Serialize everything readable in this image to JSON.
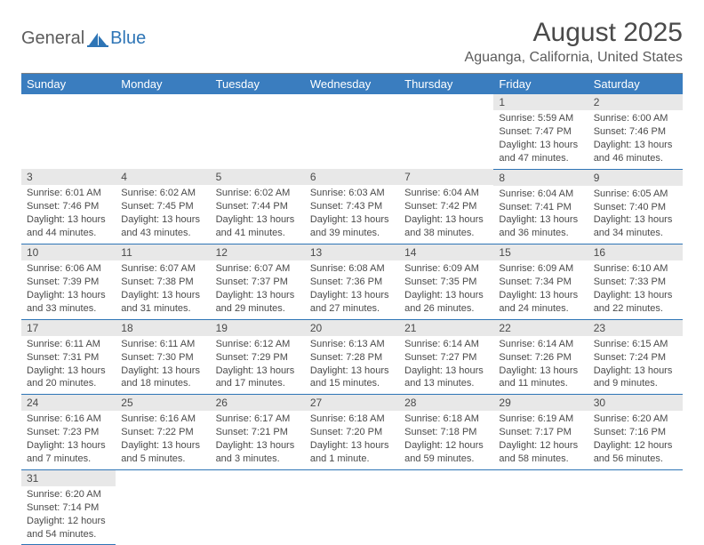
{
  "branding": {
    "text_general": "General",
    "text_blue": "Blue",
    "logo_color": "#2e75b6"
  },
  "header": {
    "month_title": "August 2025",
    "location": "Aguanga, California, United States"
  },
  "colors": {
    "header_bg": "#3a7dbf",
    "header_text": "#ffffff",
    "daynum_bg": "#e8e8e8",
    "row_divider": "#2e75b6",
    "body_text": "#4a4a4a",
    "page_bg": "#ffffff",
    "hr": "#808080"
  },
  "typography": {
    "month_title_fontsize": 30,
    "location_fontsize": 16,
    "dayheader_fontsize": 13,
    "daynum_fontsize": 12,
    "cell_fontsize": 11
  },
  "calendar": {
    "day_headers": [
      "Sunday",
      "Monday",
      "Tuesday",
      "Wednesday",
      "Thursday",
      "Friday",
      "Saturday"
    ],
    "weeks": [
      [
        null,
        null,
        null,
        null,
        null,
        {
          "day": "1",
          "sunrise": "Sunrise: 5:59 AM",
          "sunset": "Sunset: 7:47 PM",
          "daylight1": "Daylight: 13 hours",
          "daylight2": "and 47 minutes."
        },
        {
          "day": "2",
          "sunrise": "Sunrise: 6:00 AM",
          "sunset": "Sunset: 7:46 PM",
          "daylight1": "Daylight: 13 hours",
          "daylight2": "and 46 minutes."
        }
      ],
      [
        {
          "day": "3",
          "sunrise": "Sunrise: 6:01 AM",
          "sunset": "Sunset: 7:46 PM",
          "daylight1": "Daylight: 13 hours",
          "daylight2": "and 44 minutes."
        },
        {
          "day": "4",
          "sunrise": "Sunrise: 6:02 AM",
          "sunset": "Sunset: 7:45 PM",
          "daylight1": "Daylight: 13 hours",
          "daylight2": "and 43 minutes."
        },
        {
          "day": "5",
          "sunrise": "Sunrise: 6:02 AM",
          "sunset": "Sunset: 7:44 PM",
          "daylight1": "Daylight: 13 hours",
          "daylight2": "and 41 minutes."
        },
        {
          "day": "6",
          "sunrise": "Sunrise: 6:03 AM",
          "sunset": "Sunset: 7:43 PM",
          "daylight1": "Daylight: 13 hours",
          "daylight2": "and 39 minutes."
        },
        {
          "day": "7",
          "sunrise": "Sunrise: 6:04 AM",
          "sunset": "Sunset: 7:42 PM",
          "daylight1": "Daylight: 13 hours",
          "daylight2": "and 38 minutes."
        },
        {
          "day": "8",
          "sunrise": "Sunrise: 6:04 AM",
          "sunset": "Sunset: 7:41 PM",
          "daylight1": "Daylight: 13 hours",
          "daylight2": "and 36 minutes."
        },
        {
          "day": "9",
          "sunrise": "Sunrise: 6:05 AM",
          "sunset": "Sunset: 7:40 PM",
          "daylight1": "Daylight: 13 hours",
          "daylight2": "and 34 minutes."
        }
      ],
      [
        {
          "day": "10",
          "sunrise": "Sunrise: 6:06 AM",
          "sunset": "Sunset: 7:39 PM",
          "daylight1": "Daylight: 13 hours",
          "daylight2": "and 33 minutes."
        },
        {
          "day": "11",
          "sunrise": "Sunrise: 6:07 AM",
          "sunset": "Sunset: 7:38 PM",
          "daylight1": "Daylight: 13 hours",
          "daylight2": "and 31 minutes."
        },
        {
          "day": "12",
          "sunrise": "Sunrise: 6:07 AM",
          "sunset": "Sunset: 7:37 PM",
          "daylight1": "Daylight: 13 hours",
          "daylight2": "and 29 minutes."
        },
        {
          "day": "13",
          "sunrise": "Sunrise: 6:08 AM",
          "sunset": "Sunset: 7:36 PM",
          "daylight1": "Daylight: 13 hours",
          "daylight2": "and 27 minutes."
        },
        {
          "day": "14",
          "sunrise": "Sunrise: 6:09 AM",
          "sunset": "Sunset: 7:35 PM",
          "daylight1": "Daylight: 13 hours",
          "daylight2": "and 26 minutes."
        },
        {
          "day": "15",
          "sunrise": "Sunrise: 6:09 AM",
          "sunset": "Sunset: 7:34 PM",
          "daylight1": "Daylight: 13 hours",
          "daylight2": "and 24 minutes."
        },
        {
          "day": "16",
          "sunrise": "Sunrise: 6:10 AM",
          "sunset": "Sunset: 7:33 PM",
          "daylight1": "Daylight: 13 hours",
          "daylight2": "and 22 minutes."
        }
      ],
      [
        {
          "day": "17",
          "sunrise": "Sunrise: 6:11 AM",
          "sunset": "Sunset: 7:31 PM",
          "daylight1": "Daylight: 13 hours",
          "daylight2": "and 20 minutes."
        },
        {
          "day": "18",
          "sunrise": "Sunrise: 6:11 AM",
          "sunset": "Sunset: 7:30 PM",
          "daylight1": "Daylight: 13 hours",
          "daylight2": "and 18 minutes."
        },
        {
          "day": "19",
          "sunrise": "Sunrise: 6:12 AM",
          "sunset": "Sunset: 7:29 PM",
          "daylight1": "Daylight: 13 hours",
          "daylight2": "and 17 minutes."
        },
        {
          "day": "20",
          "sunrise": "Sunrise: 6:13 AM",
          "sunset": "Sunset: 7:28 PM",
          "daylight1": "Daylight: 13 hours",
          "daylight2": "and 15 minutes."
        },
        {
          "day": "21",
          "sunrise": "Sunrise: 6:14 AM",
          "sunset": "Sunset: 7:27 PM",
          "daylight1": "Daylight: 13 hours",
          "daylight2": "and 13 minutes."
        },
        {
          "day": "22",
          "sunrise": "Sunrise: 6:14 AM",
          "sunset": "Sunset: 7:26 PM",
          "daylight1": "Daylight: 13 hours",
          "daylight2": "and 11 minutes."
        },
        {
          "day": "23",
          "sunrise": "Sunrise: 6:15 AM",
          "sunset": "Sunset: 7:24 PM",
          "daylight1": "Daylight: 13 hours",
          "daylight2": "and 9 minutes."
        }
      ],
      [
        {
          "day": "24",
          "sunrise": "Sunrise: 6:16 AM",
          "sunset": "Sunset: 7:23 PM",
          "daylight1": "Daylight: 13 hours",
          "daylight2": "and 7 minutes."
        },
        {
          "day": "25",
          "sunrise": "Sunrise: 6:16 AM",
          "sunset": "Sunset: 7:22 PM",
          "daylight1": "Daylight: 13 hours",
          "daylight2": "and 5 minutes."
        },
        {
          "day": "26",
          "sunrise": "Sunrise: 6:17 AM",
          "sunset": "Sunset: 7:21 PM",
          "daylight1": "Daylight: 13 hours",
          "daylight2": "and 3 minutes."
        },
        {
          "day": "27",
          "sunrise": "Sunrise: 6:18 AM",
          "sunset": "Sunset: 7:20 PM",
          "daylight1": "Daylight: 13 hours",
          "daylight2": "and 1 minute."
        },
        {
          "day": "28",
          "sunrise": "Sunrise: 6:18 AM",
          "sunset": "Sunset: 7:18 PM",
          "daylight1": "Daylight: 12 hours",
          "daylight2": "and 59 minutes."
        },
        {
          "day": "29",
          "sunrise": "Sunrise: 6:19 AM",
          "sunset": "Sunset: 7:17 PM",
          "daylight1": "Daylight: 12 hours",
          "daylight2": "and 58 minutes."
        },
        {
          "day": "30",
          "sunrise": "Sunrise: 6:20 AM",
          "sunset": "Sunset: 7:16 PM",
          "daylight1": "Daylight: 12 hours",
          "daylight2": "and 56 minutes."
        }
      ],
      [
        {
          "day": "31",
          "sunrise": "Sunrise: 6:20 AM",
          "sunset": "Sunset: 7:14 PM",
          "daylight1": "Daylight: 12 hours",
          "daylight2": "and 54 minutes."
        },
        null,
        null,
        null,
        null,
        null,
        null
      ]
    ]
  }
}
